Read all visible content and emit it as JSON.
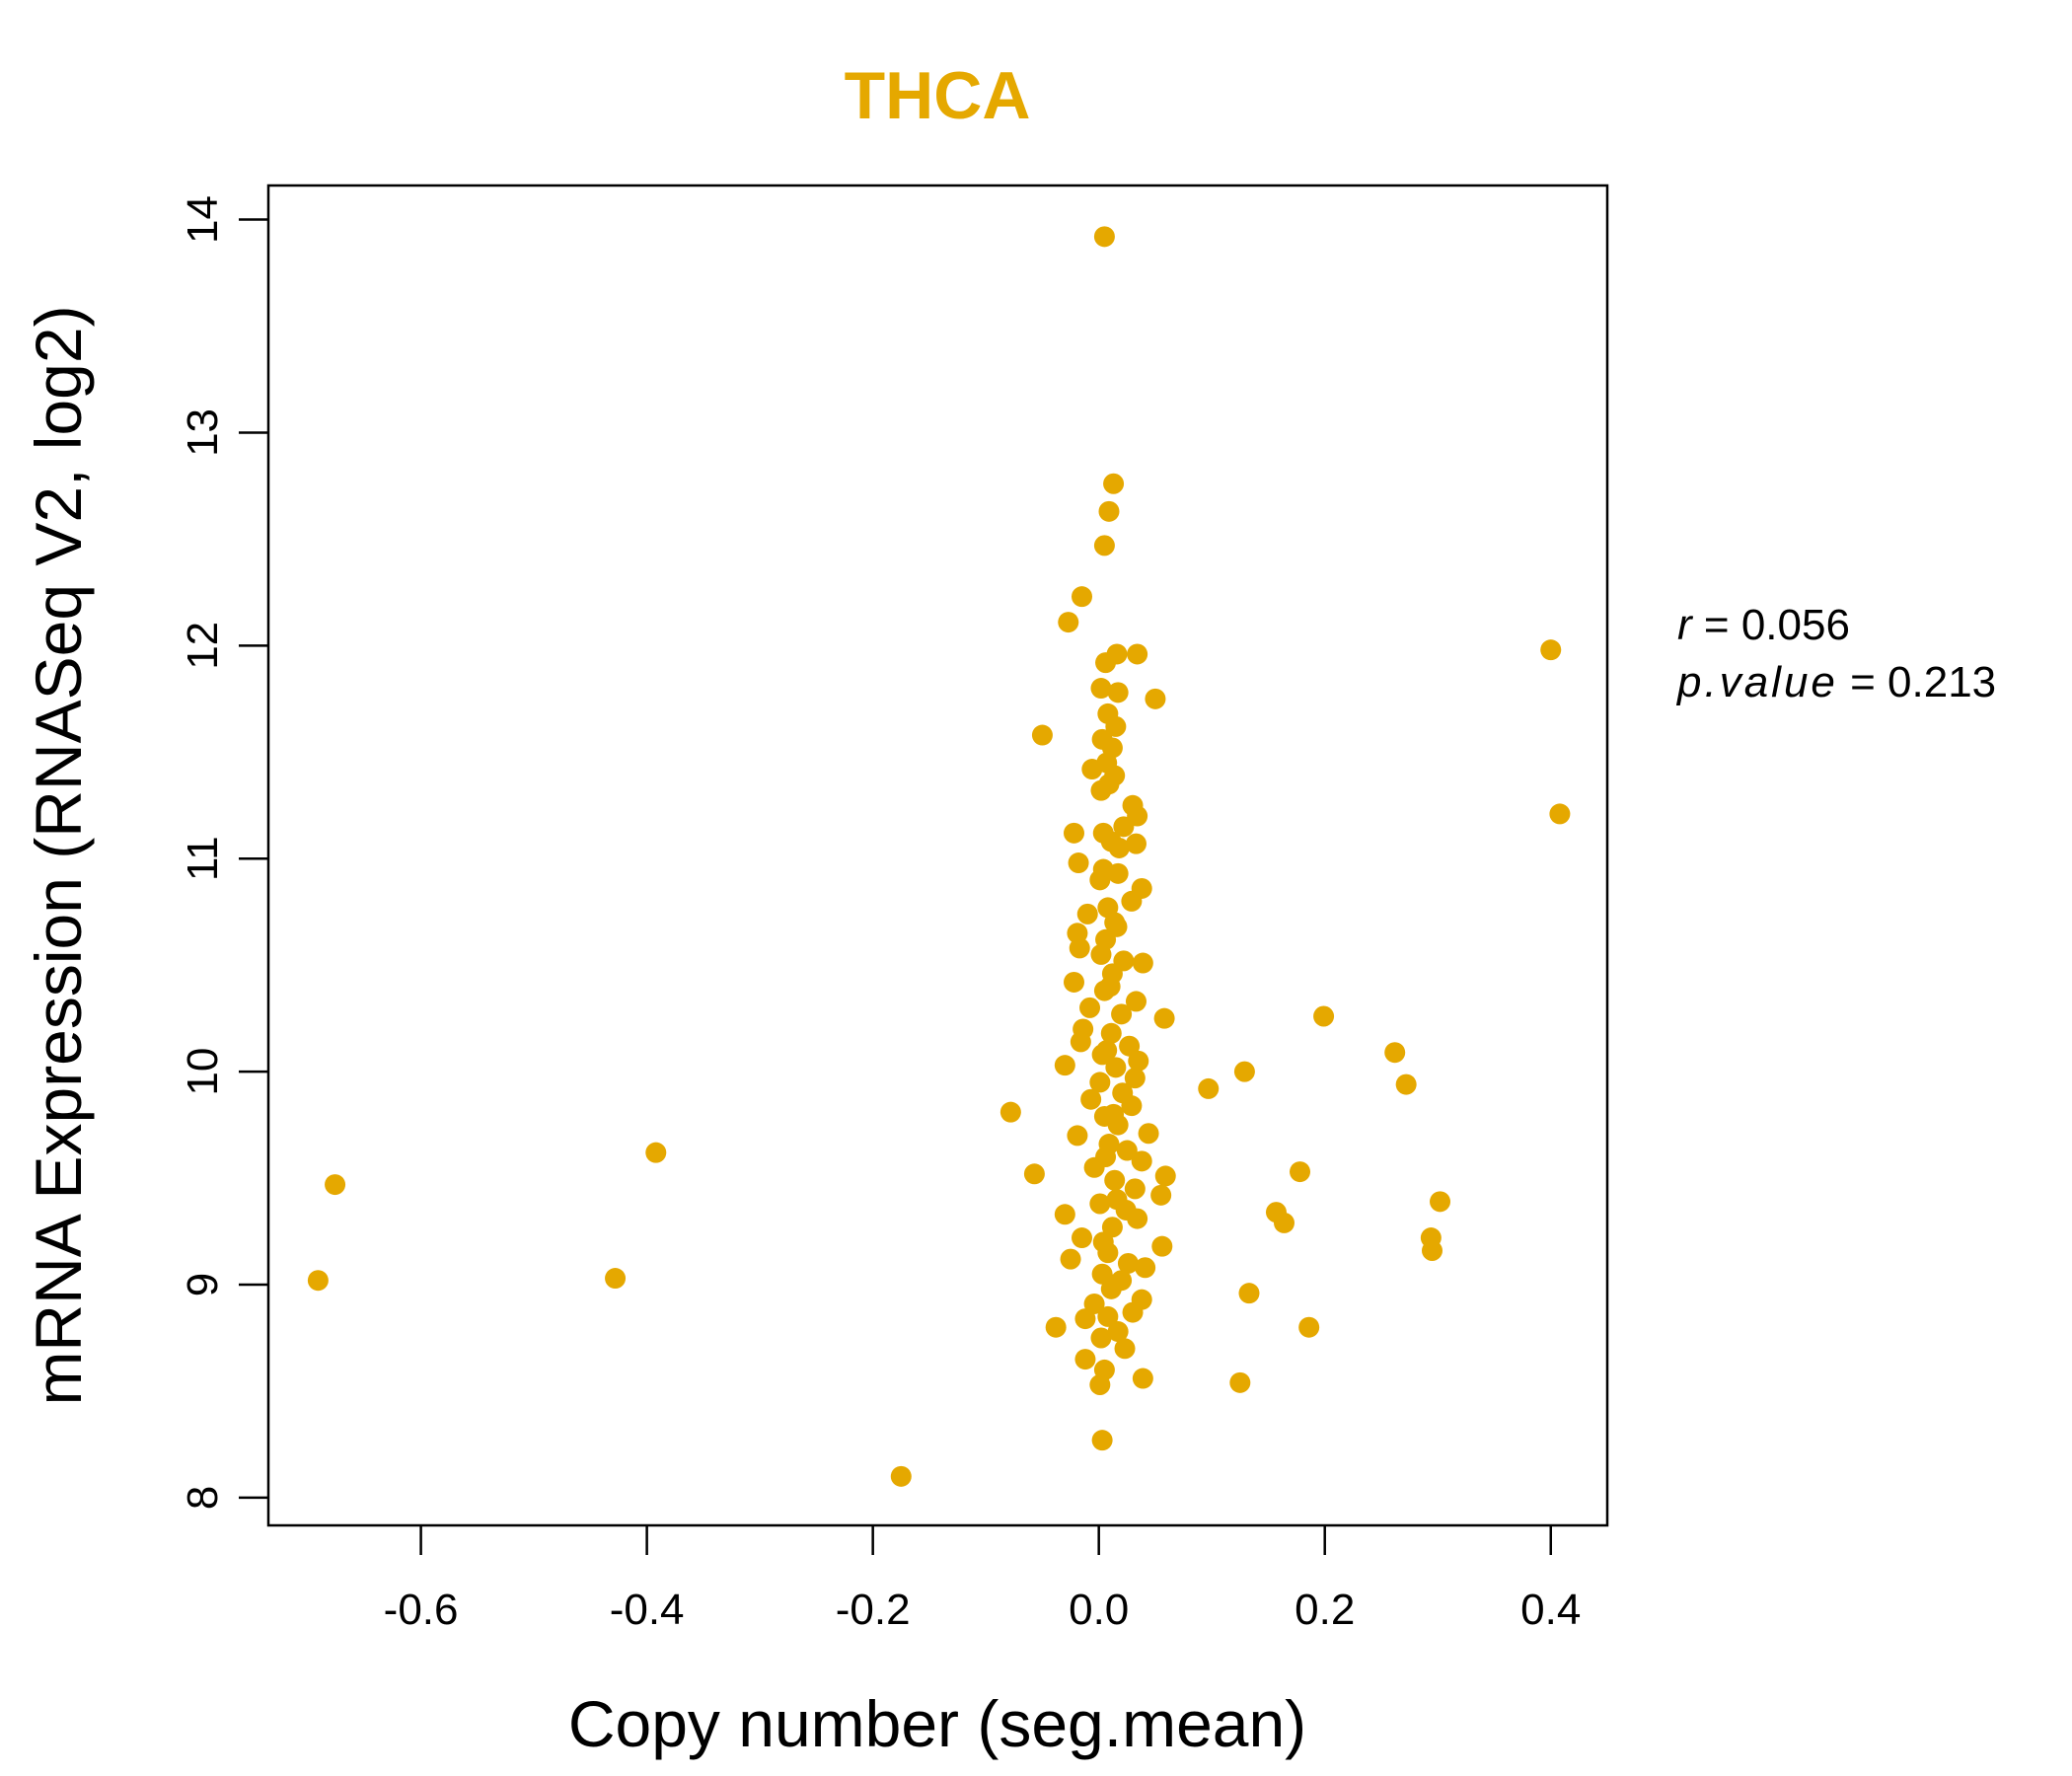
{
  "chart_data": {
    "type": "scatter",
    "title": "THCA",
    "xlabel": "Copy number (seg.mean)",
    "ylabel": "mRNA Expression (RNASeq V2, log2)",
    "xlim": [
      -0.735,
      0.45
    ],
    "ylim": [
      7.87,
      14.16
    ],
    "x_ticks": [
      -0.6,
      -0.4,
      -0.2,
      0.0,
      0.2,
      0.4
    ],
    "x_tick_labels": [
      "-0.6",
      "-0.4",
      "-0.2",
      "0.0",
      "0.2",
      "0.4"
    ],
    "y_ticks": [
      8,
      9,
      10,
      11,
      12,
      13,
      14
    ],
    "y_tick_labels": [
      "8",
      "9",
      "10",
      "11",
      "12",
      "13",
      "14"
    ],
    "color": "#E5A800",
    "stats": {
      "r_label": "r",
      "r_value": "0.056",
      "p_label": "p.value",
      "p_value": "0.213"
    },
    "points": [
      [
        0.005,
        13.92
      ],
      [
        0.013,
        12.76
      ],
      [
        0.009,
        12.63
      ],
      [
        0.005,
        12.47
      ],
      [
        -0.015,
        12.23
      ],
      [
        -0.027,
        12.11
      ],
      [
        0.4,
        11.98
      ],
      [
        0.408,
        11.21
      ],
      [
        -0.05,
        11.58
      ],
      [
        0.05,
        11.75
      ],
      [
        0.034,
        11.96
      ],
      [
        0.016,
        11.96
      ],
      [
        0.006,
        11.92
      ],
      [
        0.002,
        11.8
      ],
      [
        0.017,
        11.78
      ],
      [
        0.008,
        11.68
      ],
      [
        0.015,
        11.62
      ],
      [
        0.003,
        11.56
      ],
      [
        0.012,
        11.52
      ],
      [
        0.007,
        11.45
      ],
      [
        -0.006,
        11.42
      ],
      [
        0.014,
        11.39
      ],
      [
        0.002,
        11.32
      ],
      [
        0.03,
        11.25
      ],
      [
        0.034,
        11.2
      ],
      [
        0.022,
        11.15
      ],
      [
        0.004,
        11.12
      ],
      [
        -0.022,
        11.12
      ],
      [
        0.011,
        11.08
      ],
      [
        0.033,
        11.07
      ],
      [
        -0.018,
        10.98
      ],
      [
        0.017,
        10.93
      ],
      [
        0.001,
        10.9
      ],
      [
        0.038,
        10.86
      ],
      [
        0.029,
        10.8
      ],
      [
        0.008,
        10.77
      ],
      [
        -0.01,
        10.74
      ],
      [
        0.016,
        10.68
      ],
      [
        -0.019,
        10.65
      ],
      [
        0.006,
        10.62
      ],
      [
        -0.017,
        10.58
      ],
      [
        0.002,
        10.55
      ],
      [
        0.022,
        10.52
      ],
      [
        0.039,
        10.51
      ],
      [
        0.012,
        10.46
      ],
      [
        -0.022,
        10.42
      ],
      [
        0.005,
        10.38
      ],
      [
        0.033,
        10.33
      ],
      [
        -0.008,
        10.3
      ],
      [
        0.02,
        10.27
      ],
      [
        0.058,
        10.25
      ],
      [
        -0.014,
        10.2
      ],
      [
        0.011,
        10.18
      ],
      [
        -0.016,
        10.14
      ],
      [
        0.027,
        10.12
      ],
      [
        0.003,
        10.08
      ],
      [
        0.035,
        10.05
      ],
      [
        -0.03,
        10.03
      ],
      [
        0.015,
        10.02
      ],
      [
        0.032,
        9.97
      ],
      [
        0.001,
        9.95
      ],
      [
        0.021,
        9.9
      ],
      [
        -0.007,
        9.87
      ],
      [
        0.029,
        9.84
      ],
      [
        -0.078,
        9.81
      ],
      [
        0.005,
        9.79
      ],
      [
        0.017,
        9.75
      ],
      [
        0.044,
        9.71
      ],
      [
        -0.019,
        9.7
      ],
      [
        0.009,
        9.66
      ],
      [
        0.025,
        9.63
      ],
      [
        0.038,
        9.58
      ],
      [
        -0.004,
        9.55
      ],
      [
        -0.057,
        9.52
      ],
      [
        0.059,
        9.51
      ],
      [
        0.014,
        9.49
      ],
      [
        0.032,
        9.45
      ],
      [
        0.055,
        9.42
      ],
      [
        0.001,
        9.38
      ],
      [
        0.024,
        9.35
      ],
      [
        -0.03,
        9.33
      ],
      [
        0.034,
        9.31
      ],
      [
        0.012,
        9.27
      ],
      [
        -0.015,
        9.22
      ],
      [
        0.056,
        9.18
      ],
      [
        0.008,
        9.15
      ],
      [
        -0.025,
        9.12
      ],
      [
        0.026,
        9.1
      ],
      [
        0.041,
        9.08
      ],
      [
        0.003,
        9.05
      ],
      [
        0.02,
        9.02
      ],
      [
        0.011,
        8.98
      ],
      [
        0.038,
        8.93
      ],
      [
        -0.004,
        8.91
      ],
      [
        0.03,
        8.87
      ],
      [
        -0.012,
        8.84
      ],
      [
        -0.038,
        8.8
      ],
      [
        0.017,
        8.78
      ],
      [
        0.002,
        8.75
      ],
      [
        0.023,
        8.7
      ],
      [
        -0.012,
        8.65
      ],
      [
        0.005,
        8.6
      ],
      [
        0.039,
        8.56
      ],
      [
        0.001,
        8.53
      ],
      [
        0.003,
        8.27
      ],
      [
        -0.175,
        8.1
      ],
      [
        0.097,
        9.92
      ],
      [
        0.129,
        10.0
      ],
      [
        0.199,
        10.26
      ],
      [
        0.262,
        10.09
      ],
      [
        0.272,
        9.94
      ],
      [
        0.178,
        9.53
      ],
      [
        0.157,
        9.34
      ],
      [
        0.164,
        9.29
      ],
      [
        0.302,
        9.39
      ],
      [
        0.294,
        9.22
      ],
      [
        0.295,
        9.16
      ],
      [
        0.133,
        8.96
      ],
      [
        0.186,
        8.8
      ],
      [
        0.125,
        8.54
      ],
      [
        -0.676,
        9.47
      ],
      [
        -0.691,
        9.02
      ],
      [
        -0.392,
        9.62
      ],
      [
        -0.428,
        9.03
      ],
      [
        0.009,
        11.35
      ],
      [
        0.018,
        11.05
      ],
      [
        0.004,
        10.95
      ],
      [
        0.014,
        10.7
      ],
      [
        0.01,
        10.4
      ],
      [
        0.007,
        10.1
      ],
      [
        0.013,
        9.8
      ],
      [
        0.006,
        9.6
      ],
      [
        0.016,
        9.4
      ],
      [
        0.004,
        9.2
      ],
      [
        0.012,
        9.0
      ],
      [
        0.008,
        8.85
      ]
    ]
  }
}
